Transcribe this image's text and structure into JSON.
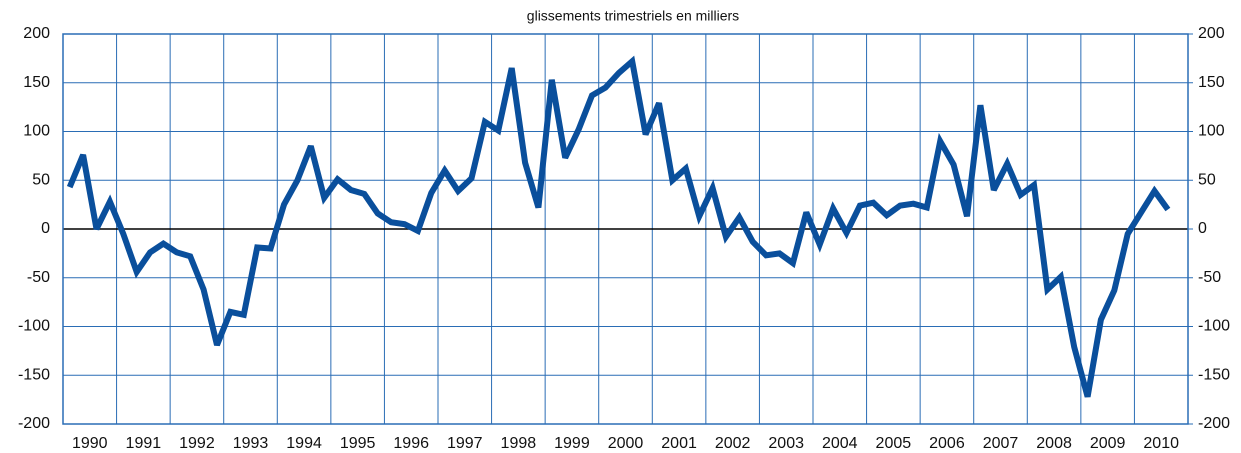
{
  "chart_data": {
    "type": "line",
    "title": "glissements trimestriels en milliers",
    "categories": [
      null,
      "1990",
      null,
      null,
      null,
      "1991",
      null,
      null,
      null,
      "1992",
      null,
      null,
      null,
      "1993",
      null,
      null,
      null,
      "1994",
      null,
      null,
      null,
      "1995",
      null,
      null,
      null,
      "1996",
      null,
      null,
      null,
      "1997",
      null,
      null,
      null,
      "1998",
      null,
      null,
      null,
      "1999",
      null,
      null,
      null,
      "2000",
      null,
      null,
      null,
      "2001",
      null,
      null,
      null,
      "2002",
      null,
      null,
      null,
      "2003",
      null,
      null,
      null,
      "2004",
      null,
      null,
      null,
      "2005",
      null,
      null,
      null,
      "2006",
      null,
      null,
      null,
      "2007",
      null,
      null,
      null,
      "2008",
      null,
      null,
      null,
      "2009",
      null,
      null,
      null,
      "2010",
      null
    ],
    "series": [
      {
        "color": "#0a4f9c",
        "values": [
          43,
          76,
          0,
          28,
          -5,
          -44,
          -24,
          -15,
          -24,
          -28,
          -62,
          -119,
          -85,
          -88,
          -19,
          -20,
          25,
          50,
          85,
          32,
          51,
          40,
          36,
          16,
          7,
          5,
          -2,
          37,
          60,
          39,
          52,
          110,
          101,
          165,
          68,
          22,
          153,
          73,
          102,
          137,
          145,
          160,
          172,
          97,
          129,
          50,
          62,
          13,
          42,
          -8,
          12,
          -13,
          -27,
          -25,
          -35,
          17,
          -16,
          21,
          -4,
          24,
          27,
          14,
          24,
          26,
          22,
          90,
          66,
          13,
          127,
          40,
          67,
          35,
          45,
          -62,
          -49,
          -121,
          -172,
          -93,
          -63,
          -5,
          17,
          39,
          20
        ]
      }
    ],
    "ylim": [
      -200,
      200
    ],
    "yticks": [
      -200,
      -150,
      -100,
      -50,
      0,
      50,
      100,
      150,
      200
    ],
    "y2lim": [
      -200,
      200
    ],
    "y2ticks": [
      -200,
      -150,
      -100,
      -50,
      0,
      50,
      100,
      150,
      200
    ],
    "grid": true,
    "grid_color": "#2a6db5"
  }
}
